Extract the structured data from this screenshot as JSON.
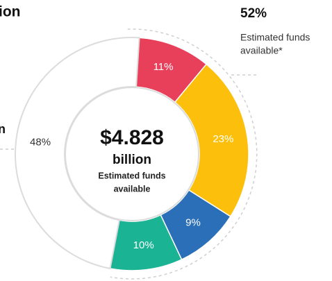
{
  "chart_data": {
    "type": "donut",
    "values": [
      11,
      23,
      9,
      10,
      48
    ],
    "value_labels": [
      "11%",
      "23%",
      "9%",
      "10%",
      "48%"
    ],
    "colors": [
      "#e8405a",
      "#fbbf0c",
      "#2a6fb8",
      "#1ab394",
      "#ffffff"
    ],
    "center_text": [
      "$4.828",
      "billion",
      "Estimated funds",
      "available"
    ],
    "annotation": {
      "value": "52%",
      "lines": [
        "Estimated funds",
        "available*"
      ]
    },
    "cropped_texts": [
      "ion",
      "n"
    ]
  }
}
